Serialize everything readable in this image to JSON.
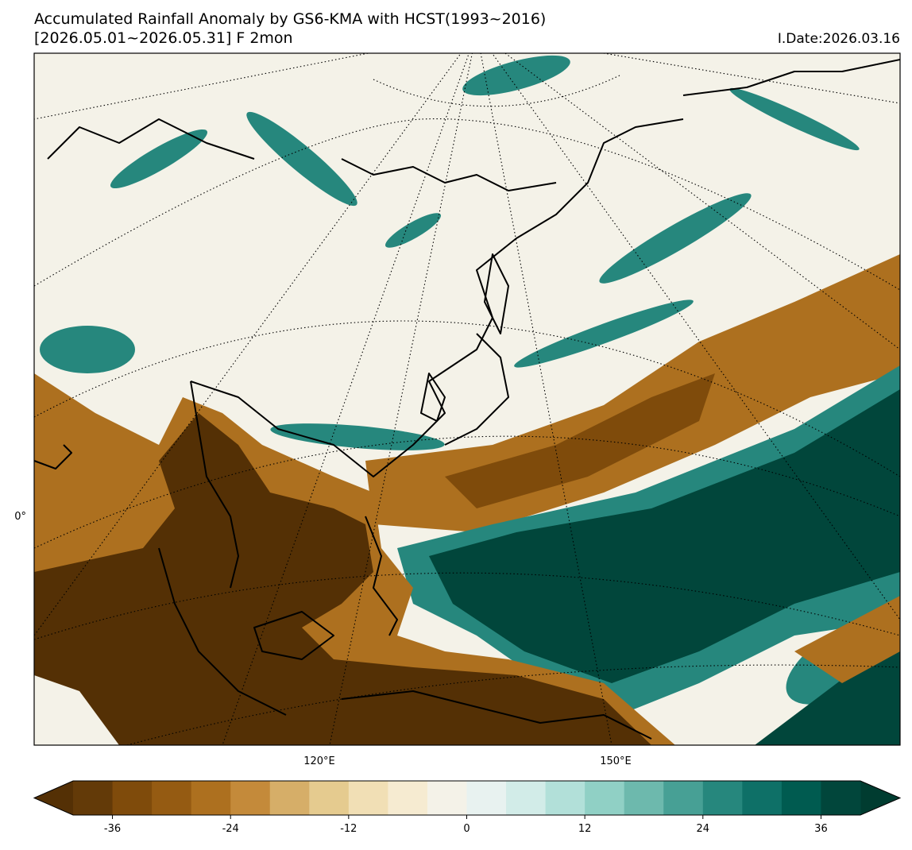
{
  "title": "Accumulated Rainfall Anomaly by GS6-KMA with HCST(1993~2016)",
  "subtitle": "[2026.05.01~2026.05.31] F 2mon",
  "init_date": "I.Date:2026.03.16",
  "map": {
    "lat_labels": [
      "0°"
    ],
    "lon_labels": [
      "120°E",
      "150°E"
    ]
  },
  "colorbar": {
    "range": [
      -40,
      40
    ],
    "ticks": [
      -36,
      -24,
      -12,
      0,
      12,
      24,
      36
    ],
    "colors": [
      "#633a08",
      "#7f4b0b",
      "#955b12",
      "#ad701f",
      "#c48a3a",
      "#d6ae68",
      "#e5cb8f",
      "#f1dfb5",
      "#f6ebd1",
      "#f4f2e8",
      "#e8f2f0",
      "#d2ece8",
      "#b2e0d9",
      "#90d0c5",
      "#6db9ad",
      "#47a095",
      "#26877d",
      "#0e7067",
      "#005b50",
      "#01463b"
    ],
    "under_color": "#543005",
    "over_color": "#003c30"
  }
}
